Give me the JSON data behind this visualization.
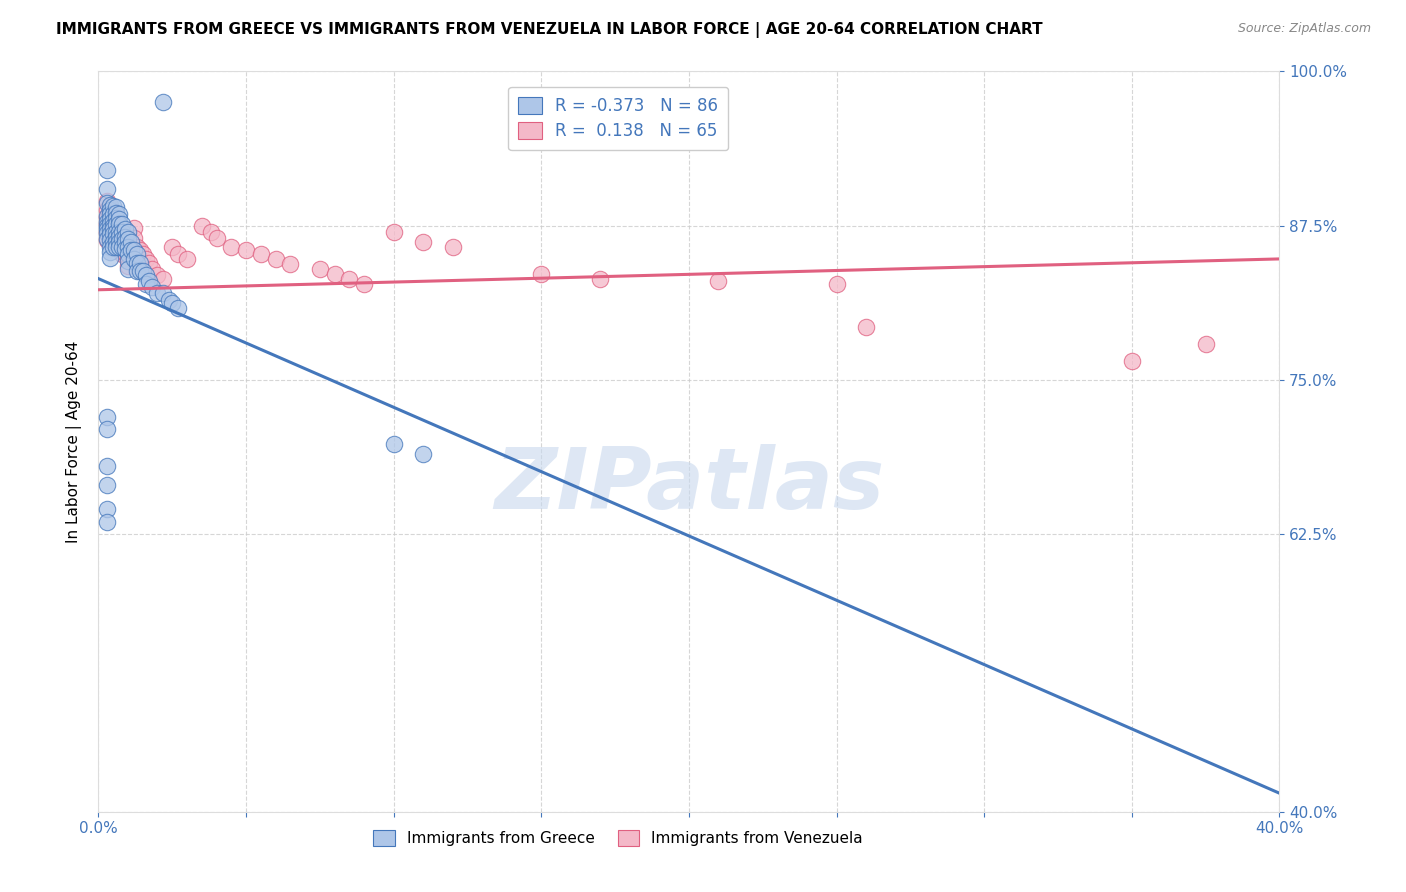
{
  "title": "IMMIGRANTS FROM GREECE VS IMMIGRANTS FROM VENEZUELA IN LABOR FORCE | AGE 20-64 CORRELATION CHART",
  "source": "Source: ZipAtlas.com",
  "ylabel_label": "In Labor Force | Age 20-64",
  "xmin": 0.0,
  "xmax": 0.4,
  "ymin": 0.4,
  "ymax": 1.0,
  "yticks": [
    0.4,
    0.625,
    0.75,
    0.875,
    1.0
  ],
  "ytick_labels": [
    "40.0%",
    "62.5%",
    "75.0%",
    "87.5%",
    "100.0%"
  ],
  "xticks": [
    0.0,
    0.05,
    0.1,
    0.15,
    0.2,
    0.25,
    0.3,
    0.35,
    0.4
  ],
  "legend_blue_r": "R = -0.373",
  "legend_blue_n": "N = 86",
  "legend_pink_r": "R =  0.138",
  "legend_pink_n": "N = 65",
  "blue_face_color": "#AEC6E8",
  "pink_face_color": "#F4B8C8",
  "blue_edge_color": "#4477BB",
  "pink_edge_color": "#E06080",
  "blue_line_color": "#4477BB",
  "pink_line_color": "#E06080",
  "legend_label_greece": "Immigrants from Greece",
  "legend_label_venezuela": "Immigrants from Venezuela",
  "greece_x": [
    0.022,
    0.006,
    0.003,
    0.003,
    0.003,
    0.003,
    0.003,
    0.003,
    0.003,
    0.003,
    0.003,
    0.004,
    0.004,
    0.004,
    0.004,
    0.004,
    0.004,
    0.004,
    0.004,
    0.004,
    0.004,
    0.004,
    0.005,
    0.005,
    0.005,
    0.005,
    0.005,
    0.005,
    0.005,
    0.005,
    0.006,
    0.006,
    0.006,
    0.006,
    0.006,
    0.006,
    0.006,
    0.006,
    0.007,
    0.007,
    0.007,
    0.007,
    0.007,
    0.007,
    0.007,
    0.008,
    0.008,
    0.008,
    0.008,
    0.009,
    0.009,
    0.009,
    0.009,
    0.01,
    0.01,
    0.01,
    0.01,
    0.01,
    0.01,
    0.011,
    0.011,
    0.012,
    0.012,
    0.013,
    0.013,
    0.013,
    0.014,
    0.014,
    0.015,
    0.016,
    0.016,
    0.017,
    0.018,
    0.02,
    0.022,
    0.024,
    0.025,
    0.027,
    0.003,
    0.003,
    0.003,
    0.003,
    0.003,
    0.003,
    0.1,
    0.11
  ],
  "greece_y": [
    0.975,
    0.88,
    0.92,
    0.905,
    0.893,
    0.883,
    0.878,
    0.875,
    0.872,
    0.869,
    0.864,
    0.892,
    0.888,
    0.884,
    0.88,
    0.876,
    0.872,
    0.868,
    0.863,
    0.858,
    0.854,
    0.849,
    0.891,
    0.884,
    0.879,
    0.875,
    0.872,
    0.868,
    0.862,
    0.858,
    0.89,
    0.885,
    0.881,
    0.876,
    0.87,
    0.866,
    0.862,
    0.858,
    0.884,
    0.88,
    0.876,
    0.87,
    0.866,
    0.862,
    0.858,
    0.876,
    0.87,
    0.864,
    0.858,
    0.872,
    0.866,
    0.862,
    0.856,
    0.87,
    0.864,
    0.858,
    0.852,
    0.846,
    0.84,
    0.862,
    0.855,
    0.855,
    0.848,
    0.852,
    0.845,
    0.838,
    0.845,
    0.838,
    0.838,
    0.835,
    0.828,
    0.83,
    0.825,
    0.82,
    0.82,
    0.815,
    0.812,
    0.808,
    0.72,
    0.71,
    0.68,
    0.665,
    0.645,
    0.635,
    0.698,
    0.69
  ],
  "venezuela_x": [
    0.003,
    0.003,
    0.003,
    0.003,
    0.003,
    0.003,
    0.004,
    0.004,
    0.004,
    0.004,
    0.004,
    0.005,
    0.005,
    0.005,
    0.005,
    0.005,
    0.006,
    0.006,
    0.006,
    0.007,
    0.007,
    0.007,
    0.008,
    0.008,
    0.008,
    0.009,
    0.009,
    0.01,
    0.01,
    0.01,
    0.012,
    0.012,
    0.013,
    0.014,
    0.015,
    0.016,
    0.017,
    0.018,
    0.02,
    0.022,
    0.025,
    0.027,
    0.03,
    0.035,
    0.038,
    0.04,
    0.045,
    0.05,
    0.055,
    0.06,
    0.065,
    0.075,
    0.08,
    0.085,
    0.09,
    0.1,
    0.11,
    0.12,
    0.15,
    0.17,
    0.21,
    0.25,
    0.26,
    0.35,
    0.375
  ],
  "venezuela_y": [
    0.895,
    0.888,
    0.882,
    0.876,
    0.87,
    0.863,
    0.89,
    0.884,
    0.878,
    0.873,
    0.865,
    0.883,
    0.876,
    0.87,
    0.863,
    0.858,
    0.876,
    0.868,
    0.863,
    0.87,
    0.863,
    0.858,
    0.865,
    0.858,
    0.852,
    0.86,
    0.853,
    0.855,
    0.848,
    0.842,
    0.873,
    0.865,
    0.858,
    0.855,
    0.852,
    0.848,
    0.845,
    0.84,
    0.835,
    0.832,
    0.858,
    0.852,
    0.848,
    0.875,
    0.87,
    0.865,
    0.858,
    0.855,
    0.852,
    0.848,
    0.844,
    0.84,
    0.836,
    0.832,
    0.828,
    0.87,
    0.862,
    0.858,
    0.836,
    0.832,
    0.83,
    0.828,
    0.793,
    0.765,
    0.779
  ],
  "blue_trend_x0": 0.0,
  "blue_trend_x1": 0.4,
  "blue_trend_y0": 0.832,
  "blue_trend_y1": 0.415,
  "pink_trend_x0": 0.0,
  "pink_trend_x1": 0.4,
  "pink_trend_y0": 0.823,
  "pink_trend_y1": 0.848,
  "grid_color": "#CCCCCC",
  "title_fontsize": 11,
  "axis_tick_color": "#4477BB",
  "watermark_text": "ZIPatlas",
  "watermark_color": "#C8D8EE",
  "watermark_alpha": 0.6,
  "source_text": "Source: ZipAtlas.com"
}
